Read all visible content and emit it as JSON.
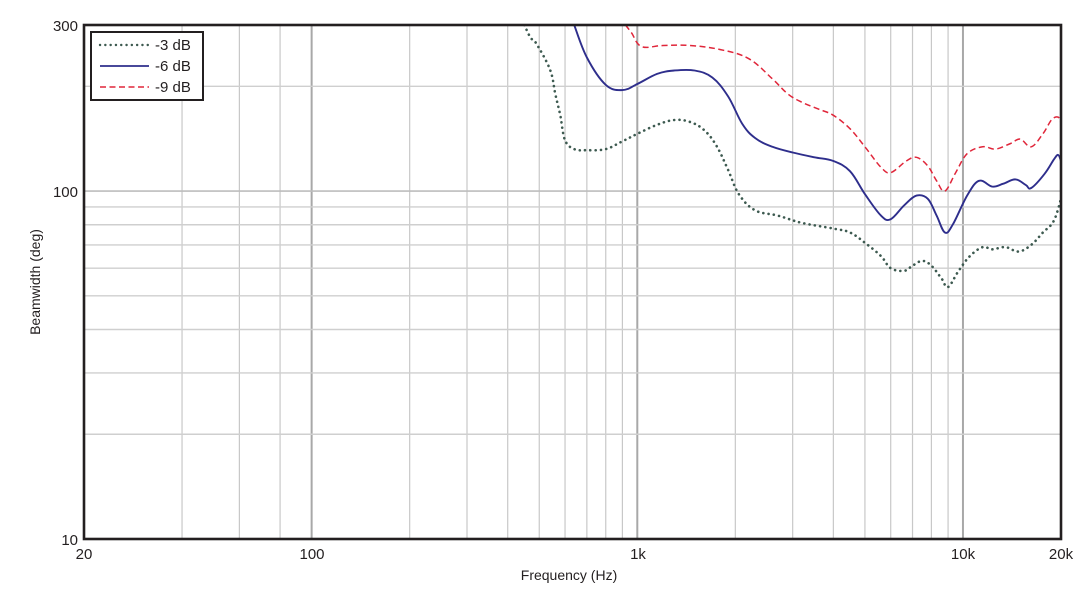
{
  "chart_data": {
    "type": "line",
    "title": "",
    "xlabel": "Frequency (Hz)",
    "ylabel": "Beamwidth (deg)",
    "xscale": "log",
    "yscale": "log",
    "xlim": [
      20,
      20000
    ],
    "ylim": [
      10,
      300
    ],
    "grid": true,
    "legend_position": "top-left",
    "x_tick_labels": [
      {
        "value": 20,
        "label": "20"
      },
      {
        "value": 100,
        "label": "100"
      },
      {
        "value": 1000,
        "label": "1k"
      },
      {
        "value": 10000,
        "label": "10k"
      },
      {
        "value": 20000,
        "label": "20k"
      }
    ],
    "y_tick_labels": [
      {
        "value": 10,
        "label": "10"
      },
      {
        "value": 100,
        "label": "100"
      },
      {
        "value": 300,
        "label": "300"
      }
    ],
    "x_minor_grid": [
      40,
      60,
      80,
      200,
      300,
      400,
      500,
      600,
      700,
      800,
      900,
      2000,
      3000,
      4000,
      5000,
      6000,
      7000,
      8000,
      9000
    ],
    "x_major_grid": [
      100,
      1000,
      10000
    ],
    "y_minor_grid": [
      20,
      30,
      40,
      50,
      60,
      70,
      80,
      90,
      200
    ],
    "y_major_grid": [
      100
    ],
    "series": [
      {
        "name": "-3 dB",
        "color": "#3d5a50",
        "style": "dotted",
        "x": [
          450,
          470,
          490,
          540,
          560,
          580,
          600,
          640,
          700,
          800,
          900,
          1000,
          1150,
          1300,
          1450,
          1600,
          1750,
          1900,
          2050,
          2300,
          2700,
          3200,
          4000,
          4500,
          5000,
          5600,
          6000,
          6600,
          7000,
          7500,
          8000,
          8600,
          9000,
          9700,
          10500,
          11500,
          12300,
          13500,
          14800,
          16200,
          17600,
          19000,
          20000
        ],
        "y": [
          300,
          276,
          265,
          223,
          190,
          165,
          140,
          132,
          131,
          132,
          139,
          146,
          155,
          160,
          158,
          150,
          135,
          115,
          98,
          88,
          85,
          81,
          78,
          76,
          71,
          65,
          60,
          59,
          61,
          63,
          61,
          56,
          53,
          59,
          65,
          69,
          68,
          69,
          67,
          70,
          76,
          82,
          95
        ]
      },
      {
        "name": "-6 dB",
        "color": "#2e2e8c",
        "style": "solid",
        "x": [
          640,
          700,
          800,
          900,
          1000,
          1150,
          1300,
          1500,
          1700,
          1900,
          2100,
          2300,
          2600,
          3000,
          3500,
          4000,
          4500,
          5000,
          5600,
          6000,
          6600,
          7200,
          7800,
          8300,
          8800,
          9300,
          10300,
          11200,
          12300,
          13300,
          14500,
          15600,
          16200,
          17800,
          19000,
          19600,
          20000
        ],
        "y": [
          300,
          242,
          202,
          195,
          203,
          217,
          222,
          222,
          212,
          187,
          156,
          142,
          134,
          129,
          125,
          122,
          114,
          98,
          85,
          83,
          91,
          97,
          95,
          85,
          76,
          80,
          97,
          107,
          103,
          105,
          108,
          104,
          102,
          112,
          123,
          127,
          122
        ]
      },
      {
        "name": "-9 dB",
        "color": "#e0263a",
        "style": "dashed",
        "x": [
          920,
          960,
          1030,
          1200,
          1450,
          1800,
          2200,
          2600,
          2900,
          3200,
          3600,
          4000,
          4500,
          5000,
          5600,
          6000,
          6700,
          7200,
          7800,
          8300,
          8800,
          9500,
          10300,
          11500,
          12600,
          14000,
          15000,
          16200,
          17600,
          18800,
          19800,
          20000
        ],
        "y": [
          300,
          285,
          260,
          262,
          262,
          255,
          240,
          210,
          190,
          180,
          172,
          165,
          151,
          134,
          117,
          113,
          122,
          125,
          118,
          107,
          100,
          113,
          128,
          134,
          132,
          137,
          141,
          134,
          146,
          161,
          162,
          152
        ]
      }
    ]
  },
  "legend": {
    "items": [
      {
        "label": "-3 dB"
      },
      {
        "label": "-6 dB"
      },
      {
        "label": "-9 dB"
      }
    ]
  },
  "axes": {
    "x_title": "Frequency (Hz)",
    "y_title": "Beamwidth (deg)",
    "x_ticks": [
      "20",
      "100",
      "1k",
      "10k",
      "20k"
    ],
    "y_ticks": [
      "10",
      "100",
      "300"
    ]
  }
}
